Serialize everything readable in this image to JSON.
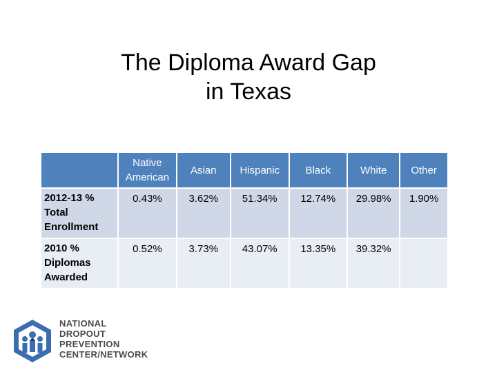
{
  "title_line1": "The Diploma Award Gap",
  "title_line2": "in Texas",
  "table": {
    "headers": [
      "",
      "Native American",
      "Asian",
      "Hispanic",
      "Black",
      "White",
      "Other"
    ],
    "rows": [
      {
        "label": "2012-13 % Total Enrollment",
        "values": [
          "0.43%",
          "3.62%",
          "51.34%",
          "12.74%",
          "29.98%",
          "1.90%"
        ]
      },
      {
        "label": "2010 % Diplomas Awarded",
        "values": [
          "0.52%",
          "3.73%",
          "43.07%",
          "13.35%",
          "39.32%",
          ""
        ]
      }
    ]
  },
  "logo": {
    "lines": [
      "NATIONAL",
      "DROPOUT",
      "PREVENTION",
      "CENTER/NETWORK"
    ],
    "colors": {
      "blue": "#3b6db0",
      "gray": "#4a4a4a"
    }
  },
  "colors": {
    "header": "#4f81bd",
    "row1": "#d0d8e8",
    "row2": "#e9edf4"
  }
}
